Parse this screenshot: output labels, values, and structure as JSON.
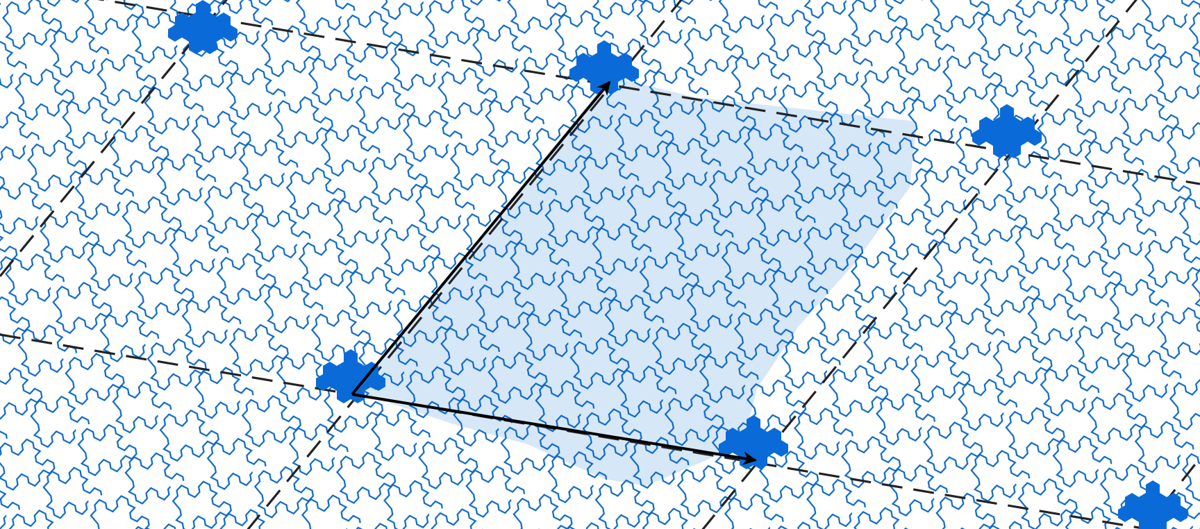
{
  "colors": {
    "background": "#ffffff",
    "tile_outline": "#0b67c8",
    "region_fill": "#d6e7f7",
    "cluster_fill": "#0a6bd8",
    "lattice_line": "#222222",
    "vector": "#000000"
  },
  "legend": "none",
  "grid": false
}
